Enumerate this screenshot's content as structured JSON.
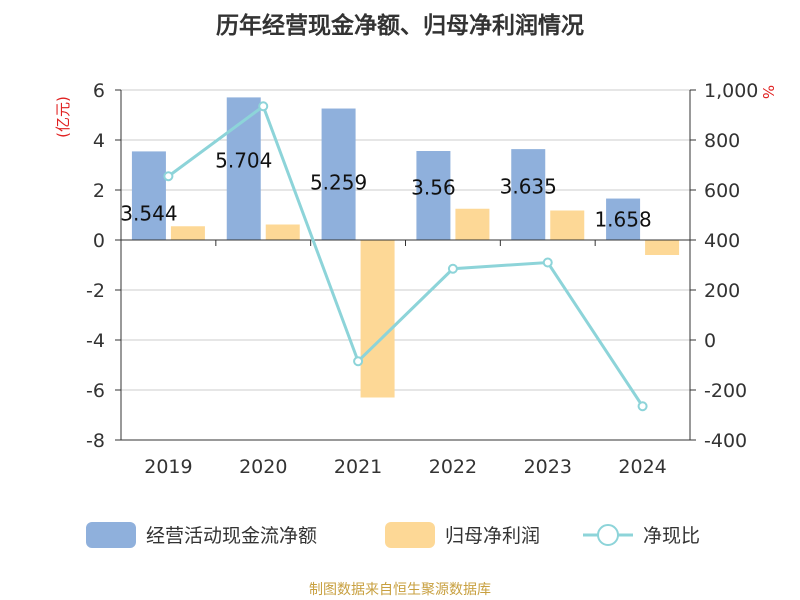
{
  "chart_data": {
    "type": "bar",
    "title": "历年经营现金净额、归母净利润情况",
    "left_axis_unit": "(亿元)",
    "right_axis_unit": "%",
    "categories": [
      "2019",
      "2020",
      "2021",
      "2022",
      "2023",
      "2024"
    ],
    "ylim_left": [
      -8,
      6
    ],
    "yticks_left": [
      "-8",
      "-6",
      "-4",
      "-2",
      "0",
      "2",
      "4",
      "6"
    ],
    "ylim_right": [
      -400,
      1000
    ],
    "yticks_right": [
      "-400",
      "-200",
      "0",
      "200",
      "400",
      "600",
      "800",
      "1,000"
    ],
    "grid": true,
    "legend_position": "bottom",
    "series": [
      {
        "name": "经营活动现金流净额",
        "type": "bar",
        "axis": "left",
        "color": "#8fb0dc",
        "values": [
          3.544,
          5.704,
          5.259,
          3.56,
          3.635,
          1.658
        ],
        "labels": [
          "3.544",
          "5.704",
          "5.259",
          "3.56",
          "3.635",
          "1.658"
        ]
      },
      {
        "name": "归母净利润",
        "type": "bar",
        "axis": "left",
        "color": "#fdd896",
        "values": [
          0.55,
          0.62,
          -6.3,
          1.25,
          1.18,
          -0.6
        ]
      },
      {
        "name": "净现比",
        "type": "line",
        "axis": "right",
        "color": "#8dd4d9",
        "values": [
          655,
          935,
          -85,
          285,
          310,
          -265
        ]
      }
    ]
  },
  "source_text": "制图数据来自恒生聚源数据库",
  "colors": {
    "axis_unit": "#e02020",
    "source": "#c8a040",
    "grid": "#cccccc",
    "axis": "#333333"
  }
}
